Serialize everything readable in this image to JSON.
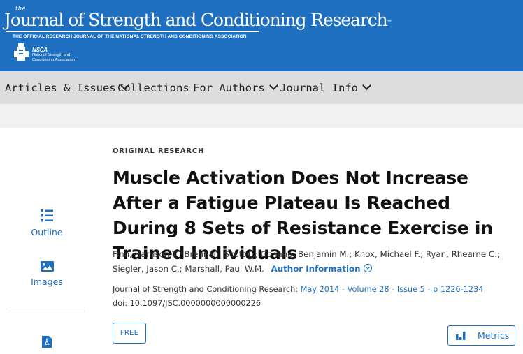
{
  "header": {
    "journal_the": "the",
    "journal_title": "Journal of Strength and Conditioning Research",
    "journal_tm": "™",
    "journal_tagline": "THE OFFICIAL RESEARCH JOURNAL OF THE NATIONAL STRENGTH AND CONDITIONING ASSOCIATION",
    "org_abbrev": "NSCA",
    "org_name_line1": "National Strength and",
    "org_name_line2": "Conditioning Association",
    "background_color": "#1f6fc1"
  },
  "nav": {
    "items": [
      {
        "label": "Articles & Issues",
        "has_dropdown": true
      },
      {
        "label": "Collections",
        "has_dropdown": false
      },
      {
        "label": "For Authors",
        "has_dropdown": true
      },
      {
        "label": "Journal Info",
        "has_dropdown": true
      }
    ]
  },
  "sidebar": {
    "items": [
      {
        "label": "Outline",
        "icon": "outline-icon"
      },
      {
        "label": "Images",
        "icon": "images-icon"
      },
      {
        "label": "",
        "icon": "pdf-icon"
      }
    ]
  },
  "article": {
    "type": "ORIGINAL RESEARCH",
    "title": "Muscle Activation Does Not Increase After a Fatigue Plateau Is Reached During 8 Sets of Resistance Exercise in Trained Individuals",
    "authors": "Finn, Harrison T.; Brennan, Scott L.; Gonano, Benjamin M.; Knox, Michael F.; Ryan, Rhearne C.; Siegler, Jason C.; Marshall, Paul W.M.",
    "author_info_label": "Author Information",
    "journal_label": "Journal of Strength and Conditioning Research:",
    "citation_link": "May 2014 - Volume 28 - Issue 5 - p 1226-1234",
    "doi": "doi: 10.1097/JSC.0000000000000226",
    "access_badge": "FREE",
    "metrics_label": "Metrics"
  },
  "colors": {
    "accent": "#1f6fc1",
    "nav_background": "#dddddd",
    "strip_background": "#f2f2f2"
  }
}
